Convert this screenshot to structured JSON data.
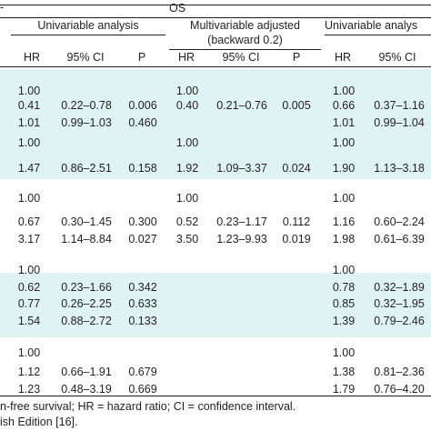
{
  "table": {
    "title_marker": "OS",
    "left_edge_mark": "-",
    "groups": [
      {
        "label": "Univariable analysis"
      },
      {
        "label_line1": "Multivariable adjusted",
        "label_line2": "(backward 0.2)"
      },
      {
        "label": "Univariable analys"
      }
    ],
    "subheaders": [
      "HR",
      "95% CI",
      "P",
      "HR",
      "95% CI",
      "P",
      "HR",
      "95% CI"
    ],
    "sections": [
      {
        "rows": [
          [
            "1.00",
            "",
            "",
            "1.00",
            "",
            "",
            "1.00",
            ""
          ],
          [
            "0.41",
            "0.22–0.78",
            "0.006",
            "0.40",
            "0.21–0.76",
            "0.005",
            "0.66",
            "0.37–1.16"
          ],
          [
            "1.01",
            "0.99–1.03",
            "0.460",
            "",
            "",
            "",
            "1.01",
            "0.99–1.04"
          ]
        ]
      },
      {
        "rows": [
          [
            "1.00",
            "",
            "",
            "1.00",
            "",
            "",
            "1.00",
            ""
          ],
          [
            "1.47",
            "0.86–2.51",
            "0.158",
            "1.92",
            "1.09–3.37",
            "0.024",
            "1.90",
            "1.13–3.18"
          ]
        ]
      },
      {
        "rows": [
          [
            "1.00",
            "",
            "",
            "1.00",
            "",
            "",
            "1.00",
            ""
          ],
          [
            "0.67",
            "0.30–1.45",
            "0.300",
            "0.52",
            "0.23–1.17",
            "0.112",
            "1.16",
            "0.60–2.24"
          ],
          [
            "3.17",
            "1.14–8.84",
            "0.027",
            "3.50",
            "1.23–9.93",
            "0.019",
            "1.98",
            "0.61–6.39"
          ]
        ]
      },
      {
        "rows": [
          [
            "1.00",
            "",
            "",
            "",
            "",
            "",
            "1.00",
            ""
          ],
          [
            "0.62",
            "0.23–1.66",
            "0.342",
            "",
            "",
            "",
            "0.78",
            "0.32–1.89"
          ],
          [
            "0.77",
            "0.26–2.25",
            "0.633",
            "",
            "",
            "",
            "0.85",
            "0.32–1.95"
          ],
          [
            "1.54",
            "0.88–2.72",
            "0.133",
            "",
            "",
            "",
            "1.39",
            "0.79–2.46"
          ]
        ]
      },
      {
        "rows": [
          [
            "1.00",
            "",
            "",
            "",
            "",
            "",
            "1.00",
            ""
          ],
          [
            "1.12",
            "0.66–1.91",
            "0.679",
            "",
            "",
            "",
            "1.38",
            "0.81–2.36"
          ],
          [
            "1.23",
            "0.48–3.19",
            "0.669",
            "",
            "",
            "",
            "1.79",
            "0.76–4.20"
          ]
        ]
      }
    ]
  },
  "footnotes": {
    "line1": "n-free survival; HR = hazard ratio; CI = confidence interval.",
    "line2": "ish Edition [16]."
  }
}
